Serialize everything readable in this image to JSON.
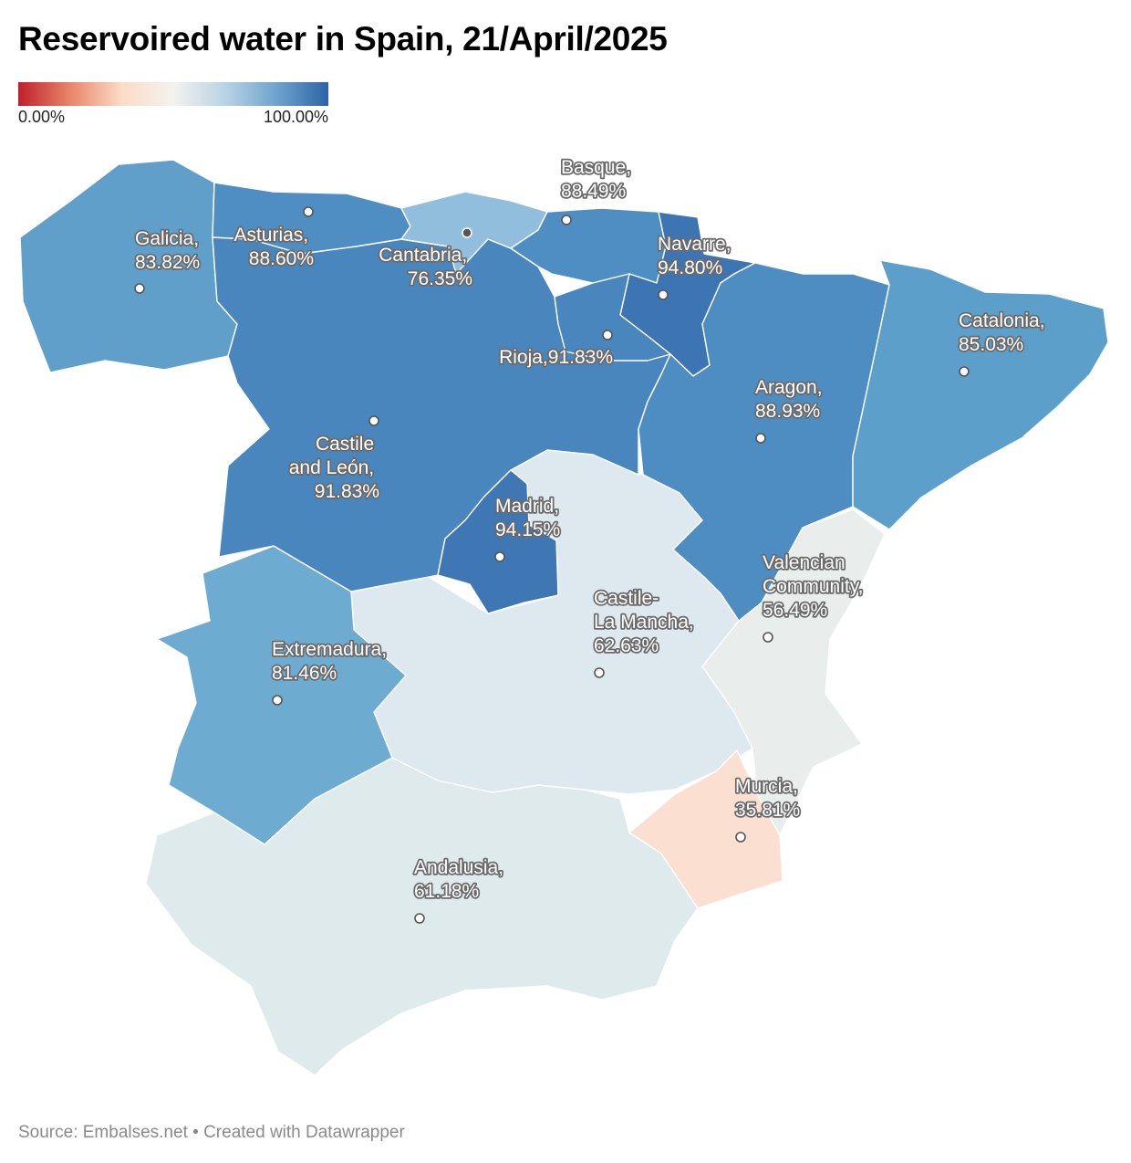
{
  "title": "Reservoired water in Spain, 21/April/2025",
  "legend": {
    "min_label": "0.00%",
    "max_label": "100.00%",
    "colors": [
      "#c0202c",
      "#e8856a",
      "#fbdcc6",
      "#f4f2ee",
      "#b9d3e6",
      "#6fa3cd",
      "#2b64a6"
    ]
  },
  "regions": [
    {
      "name": "Galicia",
      "value": 83.82,
      "label_lines": [
        "Galicia,",
        "83.82%"
      ],
      "color": "#5f9fca"
    },
    {
      "name": "Asturias",
      "value": 88.6,
      "label_lines": [
        "Asturias,",
        "88.60%"
      ],
      "color": "#4f8ec2"
    },
    {
      "name": "Cantabria",
      "value": 76.35,
      "label_lines": [
        "Cantabria,",
        "76.35%"
      ],
      "color": "#91bedc"
    },
    {
      "name": "Basque",
      "value": 88.49,
      "label_lines": [
        "Basque,",
        "88.49%"
      ],
      "color": "#4f8ec2"
    },
    {
      "name": "Navarre",
      "value": 94.8,
      "label_lines": [
        "Navarre,",
        "94.80%"
      ],
      "color": "#3d74b2"
    },
    {
      "name": "Rioja",
      "value": 91.83,
      "label_lines": [
        "Rioja,91.83%"
      ],
      "color": "#4886bd"
    },
    {
      "name": "Catalonia",
      "value": 85.03,
      "label_lines": [
        "Catalonia,",
        "85.03%"
      ],
      "color": "#5d9fcb"
    },
    {
      "name": "Aragon",
      "value": 88.93,
      "label_lines": [
        "Aragon,",
        "88.93%"
      ],
      "color": "#4e8dc2"
    },
    {
      "name": "Castile and León",
      "value": 91.83,
      "label_lines": [
        "Castile",
        "and León,",
        "91.83%"
      ],
      "color": "#4886bd"
    },
    {
      "name": "Madrid",
      "value": 94.15,
      "label_lines": [
        "Madrid,",
        "94.15%"
      ],
      "color": "#3e77b4"
    },
    {
      "name": "Extremadura",
      "value": 81.46,
      "label_lines": [
        "Extremadura,",
        "81.46%"
      ],
      "color": "#6eabd1"
    },
    {
      "name": "Castile-La Mancha",
      "value": 62.63,
      "label_lines": [
        "Castile-",
        "La Mancha,",
        "62.63%"
      ],
      "color": "#dde9ee"
    },
    {
      "name": "Valencian Community",
      "value": 56.49,
      "label_lines": [
        "Valencian",
        "Community,",
        "56.49%"
      ],
      "color": "#e9eeec"
    },
    {
      "name": "Murcia",
      "value": 35.81,
      "label_lines": [
        "Murcia,",
        "35.81%"
      ],
      "color": "#fbdfd0"
    },
    {
      "name": "Andalusia",
      "value": 61.18,
      "label_lines": [
        "Andalusia,",
        "61.18%"
      ],
      "color": "#dfeaed"
    }
  ],
  "footer": "Source: Embalses.net • Created with Datawrapper"
}
